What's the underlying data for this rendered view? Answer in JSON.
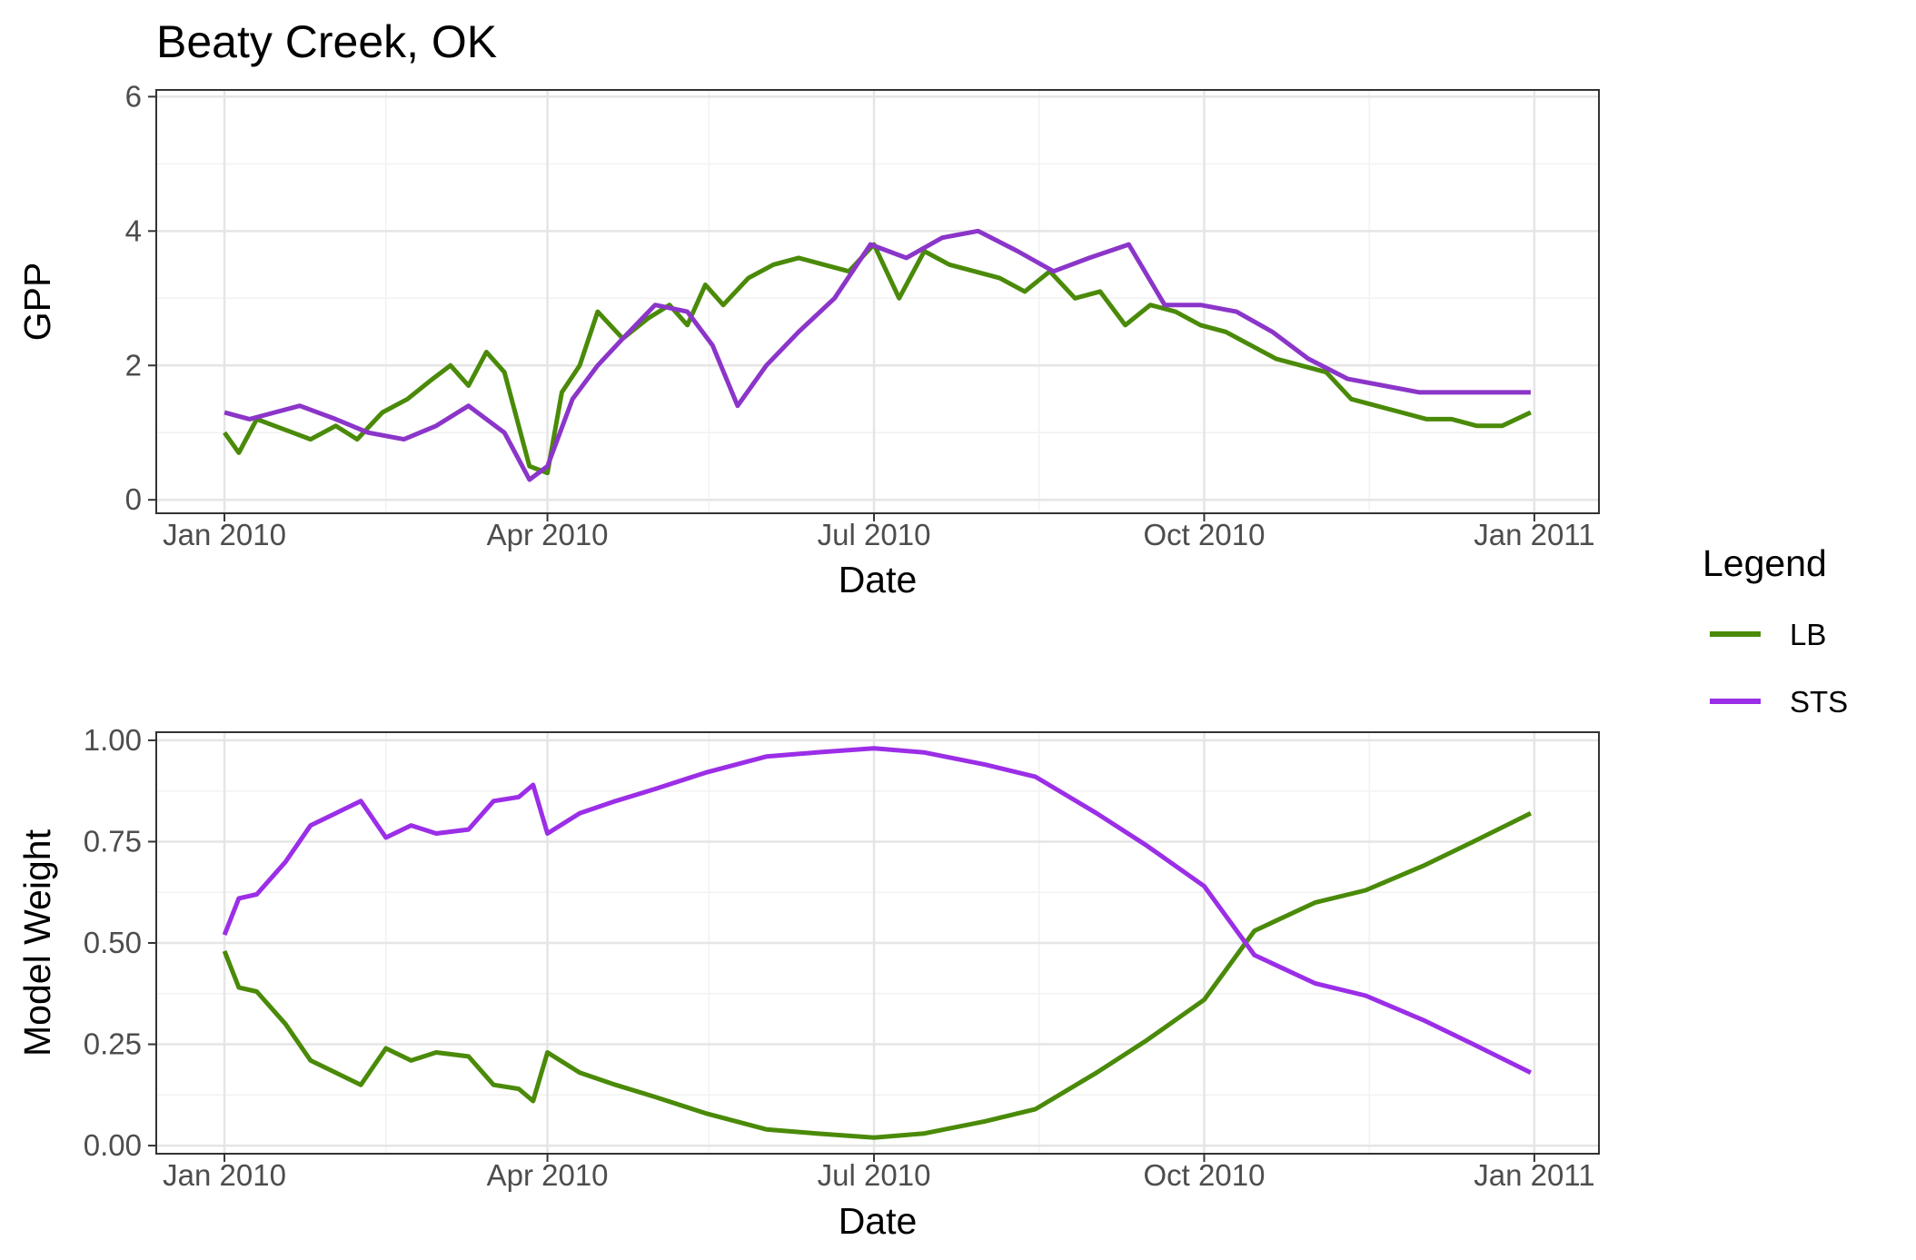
{
  "chart_data": [
    {
      "type": "line",
      "title": "Beaty Creek, OK",
      "xlabel": "Date",
      "ylabel": "GPP",
      "x_ticks": [
        "Jan 2010",
        "Apr 2010",
        "Jul 2010",
        "Oct 2010",
        "Jan 2011"
      ],
      "y_ticks": [
        "0",
        "2",
        "4",
        "6"
      ],
      "ylim": [
        -0.2,
        6.1
      ],
      "xlim": [
        "2009-12-13",
        "2011-01-19"
      ],
      "grid": true,
      "series": [
        {
          "name": "LB",
          "color": "#4a8a08",
          "x": [
            "2010-01-01",
            "2010-01-05",
            "2010-01-10",
            "2010-01-15",
            "2010-01-20",
            "2010-01-25",
            "2010-02-01",
            "2010-02-07",
            "2010-02-14",
            "2010-02-21",
            "2010-02-28",
            "2010-03-05",
            "2010-03-10",
            "2010-03-15",
            "2010-03-20",
            "2010-03-27",
            "2010-04-01",
            "2010-04-05",
            "2010-04-10",
            "2010-04-15",
            "2010-04-22",
            "2010-04-29",
            "2010-05-05",
            "2010-05-10",
            "2010-05-15",
            "2010-05-20",
            "2010-05-27",
            "2010-06-03",
            "2010-06-10",
            "2010-06-17",
            "2010-06-24",
            "2010-07-01",
            "2010-07-08",
            "2010-07-15",
            "2010-07-22",
            "2010-07-29",
            "2010-08-05",
            "2010-08-12",
            "2010-08-19",
            "2010-08-26",
            "2010-09-02",
            "2010-09-09",
            "2010-09-16",
            "2010-09-23",
            "2010-09-30",
            "2010-10-07",
            "2010-10-14",
            "2010-10-21",
            "2010-10-28",
            "2010-11-04",
            "2010-11-11",
            "2010-11-18",
            "2010-11-25",
            "2010-12-02",
            "2010-12-09",
            "2010-12-16",
            "2010-12-23",
            "2010-12-31"
          ],
          "y": [
            1.0,
            0.7,
            1.2,
            1.1,
            1.0,
            0.9,
            1.1,
            0.9,
            1.3,
            1.5,
            1.8,
            2.0,
            1.7,
            2.2,
            1.9,
            0.5,
            0.4,
            1.6,
            2.0,
            2.8,
            2.4,
            2.7,
            2.9,
            2.6,
            3.2,
            2.9,
            3.3,
            3.5,
            3.6,
            3.5,
            3.4,
            3.8,
            3.0,
            3.7,
            3.5,
            3.4,
            3.3,
            3.1,
            3.4,
            3.0,
            3.1,
            2.6,
            2.9,
            2.8,
            2.6,
            2.5,
            2.3,
            2.1,
            2.0,
            1.9,
            1.5,
            1.4,
            1.3,
            1.2,
            1.2,
            1.1,
            1.1,
            1.3
          ]
        },
        {
          "name": "STS",
          "color": "#8b35c9",
          "x": [
            "2010-01-01",
            "2010-01-08",
            "2010-01-15",
            "2010-01-22",
            "2010-02-01",
            "2010-02-10",
            "2010-02-20",
            "2010-03-01",
            "2010-03-10",
            "2010-03-20",
            "2010-03-27",
            "2010-04-01",
            "2010-04-08",
            "2010-04-15",
            "2010-04-22",
            "2010-05-01",
            "2010-05-10",
            "2010-05-17",
            "2010-05-24",
            "2010-06-01",
            "2010-06-10",
            "2010-06-20",
            "2010-06-30",
            "2010-07-10",
            "2010-07-20",
            "2010-07-30",
            "2010-08-10",
            "2010-08-20",
            "2010-08-30",
            "2010-09-10",
            "2010-09-20",
            "2010-09-30",
            "2010-10-10",
            "2010-10-20",
            "2010-10-30",
            "2010-11-10",
            "2010-11-20",
            "2010-11-30",
            "2010-12-10",
            "2010-12-20",
            "2010-12-31"
          ],
          "y": [
            1.3,
            1.2,
            1.3,
            1.4,
            1.2,
            1.0,
            0.9,
            1.1,
            1.4,
            1.0,
            0.3,
            0.5,
            1.5,
            2.0,
            2.4,
            2.9,
            2.8,
            2.3,
            1.4,
            2.0,
            2.5,
            3.0,
            3.8,
            3.6,
            3.9,
            4.0,
            3.7,
            3.4,
            3.6,
            3.8,
            2.9,
            2.9,
            2.8,
            2.5,
            2.1,
            1.8,
            1.7,
            1.6,
            1.6,
            1.6,
            1.6
          ]
        }
      ]
    },
    {
      "type": "line",
      "xlabel": "Date",
      "ylabel": "Model Weight",
      "x_ticks": [
        "Jan 2010",
        "Apr 2010",
        "Jul 2010",
        "Oct 2010",
        "Jan 2011"
      ],
      "y_ticks": [
        "0.00",
        "0.25",
        "0.50",
        "0.75",
        "1.00"
      ],
      "ylim": [
        -0.02,
        1.02
      ],
      "xlim": [
        "2009-12-13",
        "2011-01-19"
      ],
      "grid": true,
      "series": [
        {
          "name": "LB",
          "color": "#4a8a08",
          "x": [
            "2010-01-01",
            "2010-01-05",
            "2010-01-10",
            "2010-01-18",
            "2010-01-25",
            "2010-02-01",
            "2010-02-08",
            "2010-02-15",
            "2010-02-22",
            "2010-03-01",
            "2010-03-10",
            "2010-03-17",
            "2010-03-24",
            "2010-03-28",
            "2010-04-01",
            "2010-04-10",
            "2010-04-20",
            "2010-05-01",
            "2010-05-15",
            "2010-06-01",
            "2010-06-15",
            "2010-07-01",
            "2010-07-15",
            "2010-08-01",
            "2010-08-15",
            "2010-09-01",
            "2010-09-15",
            "2010-10-01",
            "2010-10-15",
            "2010-11-01",
            "2010-11-15",
            "2010-12-01",
            "2010-12-15",
            "2010-12-31"
          ],
          "y": [
            0.48,
            0.39,
            0.38,
            0.3,
            0.21,
            0.18,
            0.15,
            0.24,
            0.21,
            0.23,
            0.22,
            0.15,
            0.14,
            0.11,
            0.23,
            0.18,
            0.15,
            0.12,
            0.08,
            0.04,
            0.03,
            0.02,
            0.03,
            0.06,
            0.09,
            0.18,
            0.26,
            0.36,
            0.53,
            0.6,
            0.63,
            0.69,
            0.75,
            0.82
          ]
        },
        {
          "name": "STS",
          "color": "#9b2ee6",
          "x": [
            "2010-01-01",
            "2010-01-05",
            "2010-01-10",
            "2010-01-18",
            "2010-01-25",
            "2010-02-01",
            "2010-02-08",
            "2010-02-15",
            "2010-02-22",
            "2010-03-01",
            "2010-03-10",
            "2010-03-17",
            "2010-03-24",
            "2010-03-28",
            "2010-04-01",
            "2010-04-10",
            "2010-04-20",
            "2010-05-01",
            "2010-05-15",
            "2010-06-01",
            "2010-06-15",
            "2010-07-01",
            "2010-07-15",
            "2010-08-01",
            "2010-08-15",
            "2010-09-01",
            "2010-09-15",
            "2010-10-01",
            "2010-10-15",
            "2010-11-01",
            "2010-11-15",
            "2010-12-01",
            "2010-12-15",
            "2010-12-31"
          ],
          "y": [
            0.52,
            0.61,
            0.62,
            0.7,
            0.79,
            0.82,
            0.85,
            0.76,
            0.79,
            0.77,
            0.78,
            0.85,
            0.86,
            0.89,
            0.77,
            0.82,
            0.85,
            0.88,
            0.92,
            0.96,
            0.97,
            0.98,
            0.97,
            0.94,
            0.91,
            0.82,
            0.74,
            0.64,
            0.47,
            0.4,
            0.37,
            0.31,
            0.25,
            0.18
          ]
        }
      ]
    }
  ],
  "legend": {
    "title": "Legend",
    "placement": "right",
    "entries": [
      {
        "label": "LB",
        "color": "#4a8a08"
      },
      {
        "label": "STS",
        "color": "#9b2ee6"
      }
    ]
  }
}
